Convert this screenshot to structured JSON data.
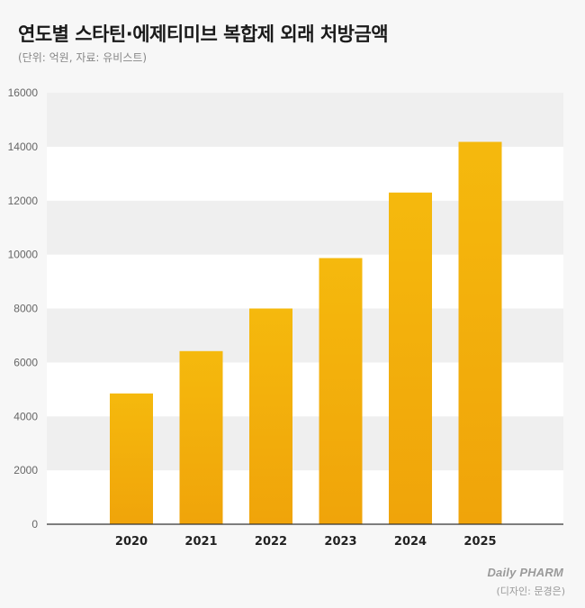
{
  "chart_data": {
    "type": "bar",
    "title": "연도별 스타틴·에제티미브 복합제 외래 처방금액",
    "subtitle": "(단위: 억원, 자료: 유비스트)",
    "categories": [
      "2020",
      "2021",
      "2022",
      "2023",
      "2024",
      "2025"
    ],
    "values": [
      4850,
      6420,
      8000,
      9870,
      12300,
      14180
    ],
    "xlabel": "",
    "ylabel": "",
    "ylim": [
      0,
      16000
    ],
    "yticks": [
      0,
      2000,
      4000,
      6000,
      8000,
      10000,
      12000,
      14000,
      16000
    ],
    "grid": "alternating horizontal bands",
    "bar_color_top": "#f5b90d",
    "bar_color_bottom": "#f0a40a",
    "legend": "none"
  },
  "footer": {
    "logo": "Daily PHARM",
    "designer": "(디자인: 문경은)"
  }
}
